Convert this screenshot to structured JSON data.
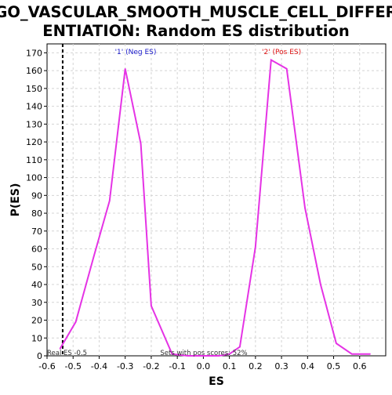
{
  "chart_data": {
    "type": "line",
    "title_line1": "GO_VASCULAR_SMOOTH_MUSCLE_CELL_DIFFER",
    "title_line2": "ENTIATION: Random ES distribution",
    "xlabel": "ES",
    "ylabel": "P(ES)",
    "xlim": [
      -0.6,
      0.7
    ],
    "ylim": [
      0,
      175
    ],
    "xticks": [
      -0.6,
      -0.5,
      -0.4,
      -0.3,
      -0.2,
      -0.1,
      0.0,
      0.1,
      0.2,
      0.3,
      0.4,
      0.5,
      0.6
    ],
    "xtick_labels": [
      "-0.6",
      "-0.5",
      "-0.4",
      "-0.3",
      "-0.2",
      "-0.1",
      "0.0",
      "0.1",
      "0.2",
      "0.3",
      "0.4",
      "0.5",
      "0.6"
    ],
    "yticks": [
      0,
      10,
      20,
      30,
      40,
      50,
      60,
      70,
      80,
      90,
      100,
      110,
      120,
      130,
      140,
      150,
      160,
      170
    ],
    "grid": true,
    "series": [
      {
        "color": "#e533e5",
        "x": [
          -0.55,
          -0.49,
          -0.42,
          -0.36,
          -0.3,
          -0.24,
          -0.2,
          -0.12,
          -0.06,
          0.0,
          0.06,
          0.1,
          0.14,
          0.2,
          0.26,
          0.32,
          0.39,
          0.45,
          0.51,
          0.57,
          0.64
        ],
        "y": [
          4,
          19,
          56,
          87,
          161,
          119,
          28,
          1,
          0,
          0,
          0,
          1,
          5,
          61,
          166,
          161,
          83,
          40,
          7,
          1,
          1
        ]
      }
    ],
    "real_es_line": {
      "x": -0.54,
      "style": "dashed",
      "color": "#000000"
    },
    "annotations": {
      "neg_label": "'1' (Neg ES)",
      "pos_label": "'2' (Pos ES)",
      "neg_color": "#1a1acc",
      "pos_color": "#dd1111",
      "real_es_text": "Real ES -0.5",
      "sets_text": "Sets with pos scores: 52%"
    }
  }
}
